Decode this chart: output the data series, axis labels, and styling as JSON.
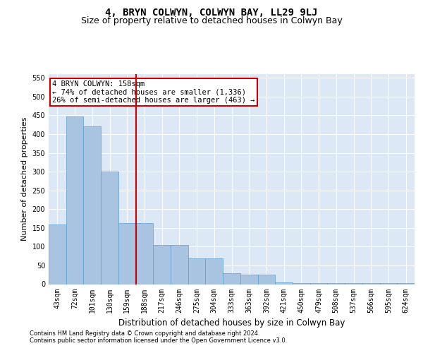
{
  "title": "4, BRYN COLWYN, COLWYN BAY, LL29 9LJ",
  "subtitle": "Size of property relative to detached houses in Colwyn Bay",
  "xlabel": "Distribution of detached houses by size in Colwyn Bay",
  "ylabel": "Number of detached properties",
  "categories": [
    "43sqm",
    "72sqm",
    "101sqm",
    "130sqm",
    "159sqm",
    "188sqm",
    "217sqm",
    "246sqm",
    "275sqm",
    "304sqm",
    "333sqm",
    "363sqm",
    "392sqm",
    "421sqm",
    "450sqm",
    "479sqm",
    "508sqm",
    "537sqm",
    "566sqm",
    "595sqm",
    "624sqm"
  ],
  "values": [
    160,
    448,
    420,
    300,
    162,
    162,
    105,
    105,
    68,
    68,
    30,
    25,
    25,
    5,
    3,
    2,
    2,
    2,
    2,
    2,
    2
  ],
  "bar_color": "#a8c4e0",
  "bar_edgecolor": "#5a9fd4",
  "bg_color": "#dce8f5",
  "grid_color": "#ffffff",
  "vline_x": 4.5,
  "vline_color": "#cc0000",
  "annotation_text": "4 BRYN COLWYN: 158sqm\n← 74% of detached houses are smaller (1,336)\n26% of semi-detached houses are larger (463) →",
  "annotation_box_color": "#cc0000",
  "ylim": [
    0,
    560
  ],
  "yticks": [
    0,
    50,
    100,
    150,
    200,
    250,
    300,
    350,
    400,
    450,
    500,
    550
  ],
  "footer1": "Contains HM Land Registry data © Crown copyright and database right 2024.",
  "footer2": "Contains public sector information licensed under the Open Government Licence v3.0.",
  "title_fontsize": 10,
  "subtitle_fontsize": 9,
  "tick_fontsize": 7,
  "label_fontsize": 8.5,
  "ylabel_fontsize": 8,
  "footer_fontsize": 6,
  "ann_fontsize": 7.5
}
